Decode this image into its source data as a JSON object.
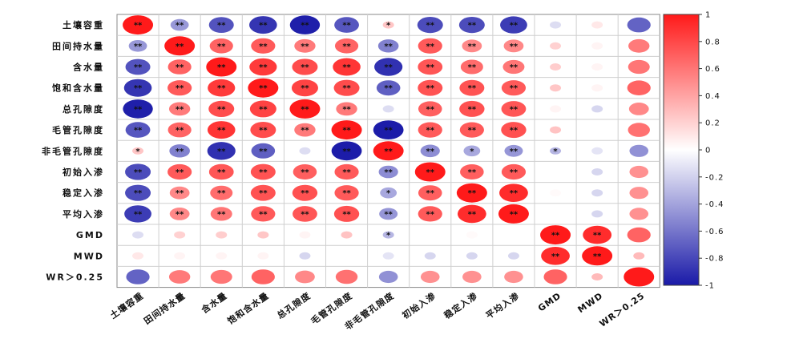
{
  "chart_data": {
    "type": "heatmap",
    "row_labels": [
      "土壤容重",
      "田间持水量",
      "含水量",
      "饱和含水量",
      "总孔隙度",
      "毛管孔隙度",
      "非毛管孔隙度",
      "初始入渗",
      "稳定入渗",
      "平均入渗",
      "GMD",
      "MWD",
      "WR＞0.25"
    ],
    "col_labels": [
      "土壤容重",
      "田间持水量",
      "含水量",
      "饱和含水量",
      "总孔隙度",
      "毛管孔隙度",
      "非毛管孔隙度",
      "初始入渗",
      "稳定入渗",
      "平均入渗",
      "GMD",
      "MWD",
      "WR＞0.25"
    ],
    "values": [
      [
        1.0,
        -0.45,
        -0.75,
        -0.88,
        -0.98,
        -0.74,
        0.25,
        -0.78,
        -0.78,
        -0.85,
        -0.15,
        0.1,
        -0.68
      ],
      [
        -0.45,
        1.0,
        0.68,
        0.72,
        0.58,
        0.68,
        -0.55,
        0.72,
        0.52,
        0.52,
        0.2,
        0.05,
        0.58
      ],
      [
        -0.75,
        0.68,
        1.0,
        0.86,
        0.78,
        0.88,
        -0.9,
        0.74,
        0.64,
        0.6,
        0.22,
        0.05,
        0.6
      ],
      [
        -0.88,
        0.72,
        0.86,
        1.0,
        0.82,
        0.78,
        -0.7,
        0.75,
        0.75,
        0.72,
        0.25,
        0.05,
        0.68
      ],
      [
        -0.98,
        0.58,
        0.78,
        0.82,
        1.0,
        0.58,
        -0.15,
        0.7,
        0.76,
        0.74,
        0.05,
        -0.18,
        0.52
      ],
      [
        -0.74,
        0.68,
        0.88,
        0.78,
        0.58,
        1.0,
        -0.99,
        0.72,
        0.72,
        0.76,
        0.26,
        0.0,
        0.62
      ],
      [
        0.25,
        -0.55,
        -0.9,
        -0.7,
        -0.15,
        -0.99,
        1.0,
        -0.5,
        -0.38,
        -0.46,
        -0.32,
        -0.12,
        -0.48
      ],
      [
        -0.78,
        0.72,
        0.74,
        0.75,
        0.7,
        0.72,
        -0.5,
        1.0,
        0.7,
        0.72,
        0.0,
        -0.18,
        0.48
      ],
      [
        -0.78,
        0.52,
        0.64,
        0.75,
        0.76,
        0.72,
        -0.38,
        0.7,
        1.0,
        0.92,
        0.02,
        -0.18,
        0.48
      ],
      [
        -0.85,
        0.52,
        0.6,
        0.72,
        0.74,
        0.76,
        -0.46,
        0.72,
        0.92,
        1.0,
        0.0,
        -0.18,
        0.48
      ],
      [
        -0.15,
        0.2,
        0.22,
        0.25,
        0.05,
        0.26,
        -0.32,
        0.0,
        0.02,
        0.0,
        1.0,
        0.92,
        0.68
      ],
      [
        0.1,
        0.05,
        0.05,
        0.05,
        -0.18,
        0.0,
        -0.12,
        -0.18,
        -0.18,
        -0.18,
        0.92,
        1.0,
        0.3
      ],
      [
        -0.68,
        0.58,
        0.6,
        0.68,
        0.52,
        0.62,
        -0.48,
        0.48,
        0.48,
        0.48,
        0.68,
        0.3,
        1.0
      ]
    ],
    "significance": [
      [
        "**",
        "**",
        "**",
        "**",
        "**",
        "**",
        "*",
        "**",
        "**",
        "**",
        "",
        "",
        ""
      ],
      [
        "**",
        "**",
        "**",
        "**",
        "**",
        "**",
        "**",
        "**",
        "**",
        "**",
        "",
        "",
        ""
      ],
      [
        "**",
        "**",
        "**",
        "**",
        "**",
        "**",
        "**",
        "**",
        "**",
        "**",
        "",
        "",
        ""
      ],
      [
        "**",
        "**",
        "**",
        "**",
        "**",
        "**",
        "**",
        "**",
        "**",
        "**",
        "",
        "",
        ""
      ],
      [
        "**",
        "**",
        "**",
        "**",
        "**",
        "**",
        "",
        "**",
        "**",
        "**",
        "",
        "",
        ""
      ],
      [
        "**",
        "**",
        "**",
        "**",
        "**",
        "**",
        "**",
        "**",
        "**",
        "**",
        "",
        "",
        ""
      ],
      [
        "*",
        "**",
        "**",
        "**",
        "",
        "**",
        "**",
        "**",
        "*",
        "**",
        "*",
        "",
        ""
      ],
      [
        "**",
        "**",
        "**",
        "**",
        "**",
        "**",
        "**",
        "**",
        "**",
        "**",
        "",
        "",
        ""
      ],
      [
        "**",
        "**",
        "**",
        "**",
        "**",
        "**",
        "*",
        "**",
        "**",
        "**",
        "",
        "",
        ""
      ],
      [
        "**",
        "**",
        "**",
        "**",
        "**",
        "**",
        "**",
        "**",
        "**",
        "**",
        "",
        "",
        ""
      ],
      [
        "",
        "",
        "",
        "",
        "",
        "",
        "*",
        "",
        "",
        "",
        "**",
        "**",
        ""
      ],
      [
        "",
        "",
        "",
        "",
        "",
        "",
        "",
        "",
        "",
        "",
        "**",
        "**",
        ""
      ],
      [
        "",
        "",
        "",
        "",
        "",
        "",
        "",
        "",
        "",
        "",
        "",
        "",
        ""
      ]
    ],
    "colorbar": {
      "range": [
        -1,
        1
      ],
      "ticks": [
        "1",
        "0.8",
        "0.6",
        "0.4",
        "0.2",
        "0",
        "-0.2",
        "-0.4",
        "-0.6",
        "-0.8",
        "-1"
      ]
    },
    "colors": {
      "negative": "#1a1aa8",
      "neutral": "#ffffff",
      "positive": "#ff1a1a"
    }
  }
}
